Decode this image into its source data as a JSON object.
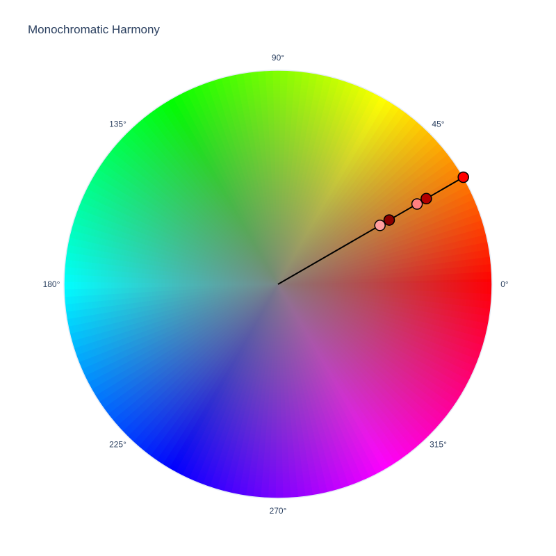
{
  "chart_data": {
    "type": "scatter",
    "coordinate_system": "polar",
    "title": "Monochromatic Harmony",
    "angular_axis": {
      "unit": "degrees",
      "direction": "counterclockwise",
      "rotation": 0,
      "tick_values": [
        0,
        45,
        90,
        135,
        180,
        225,
        270,
        315
      ],
      "tick_labels": [
        "0°",
        "45°",
        "90°",
        "135°",
        "180°",
        "225°",
        "270°",
        "315°"
      ]
    },
    "radial_axis": {
      "range": [
        0,
        1
      ],
      "visible": false
    },
    "background": "hue-saturation color wheel",
    "series": [
      {
        "mode": "lines",
        "line_color": "#000000",
        "points": [
          {
            "theta": 30,
            "r": 0
          },
          {
            "theta": 30,
            "r": 1
          }
        ]
      },
      {
        "mode": "markers",
        "marker_outline": "#000000",
        "points": [
          {
            "theta": 30,
            "r": 1.0,
            "color": "#ff0000"
          },
          {
            "theta": 30,
            "r": 0.8,
            "color": "#b30000"
          },
          {
            "theta": 30,
            "r": 0.75,
            "color": "#ff8080"
          },
          {
            "theta": 30,
            "r": 0.6,
            "color": "#8a0000"
          },
          {
            "theta": 30,
            "r": 0.55,
            "color": "#ff9e9e"
          }
        ]
      }
    ]
  }
}
